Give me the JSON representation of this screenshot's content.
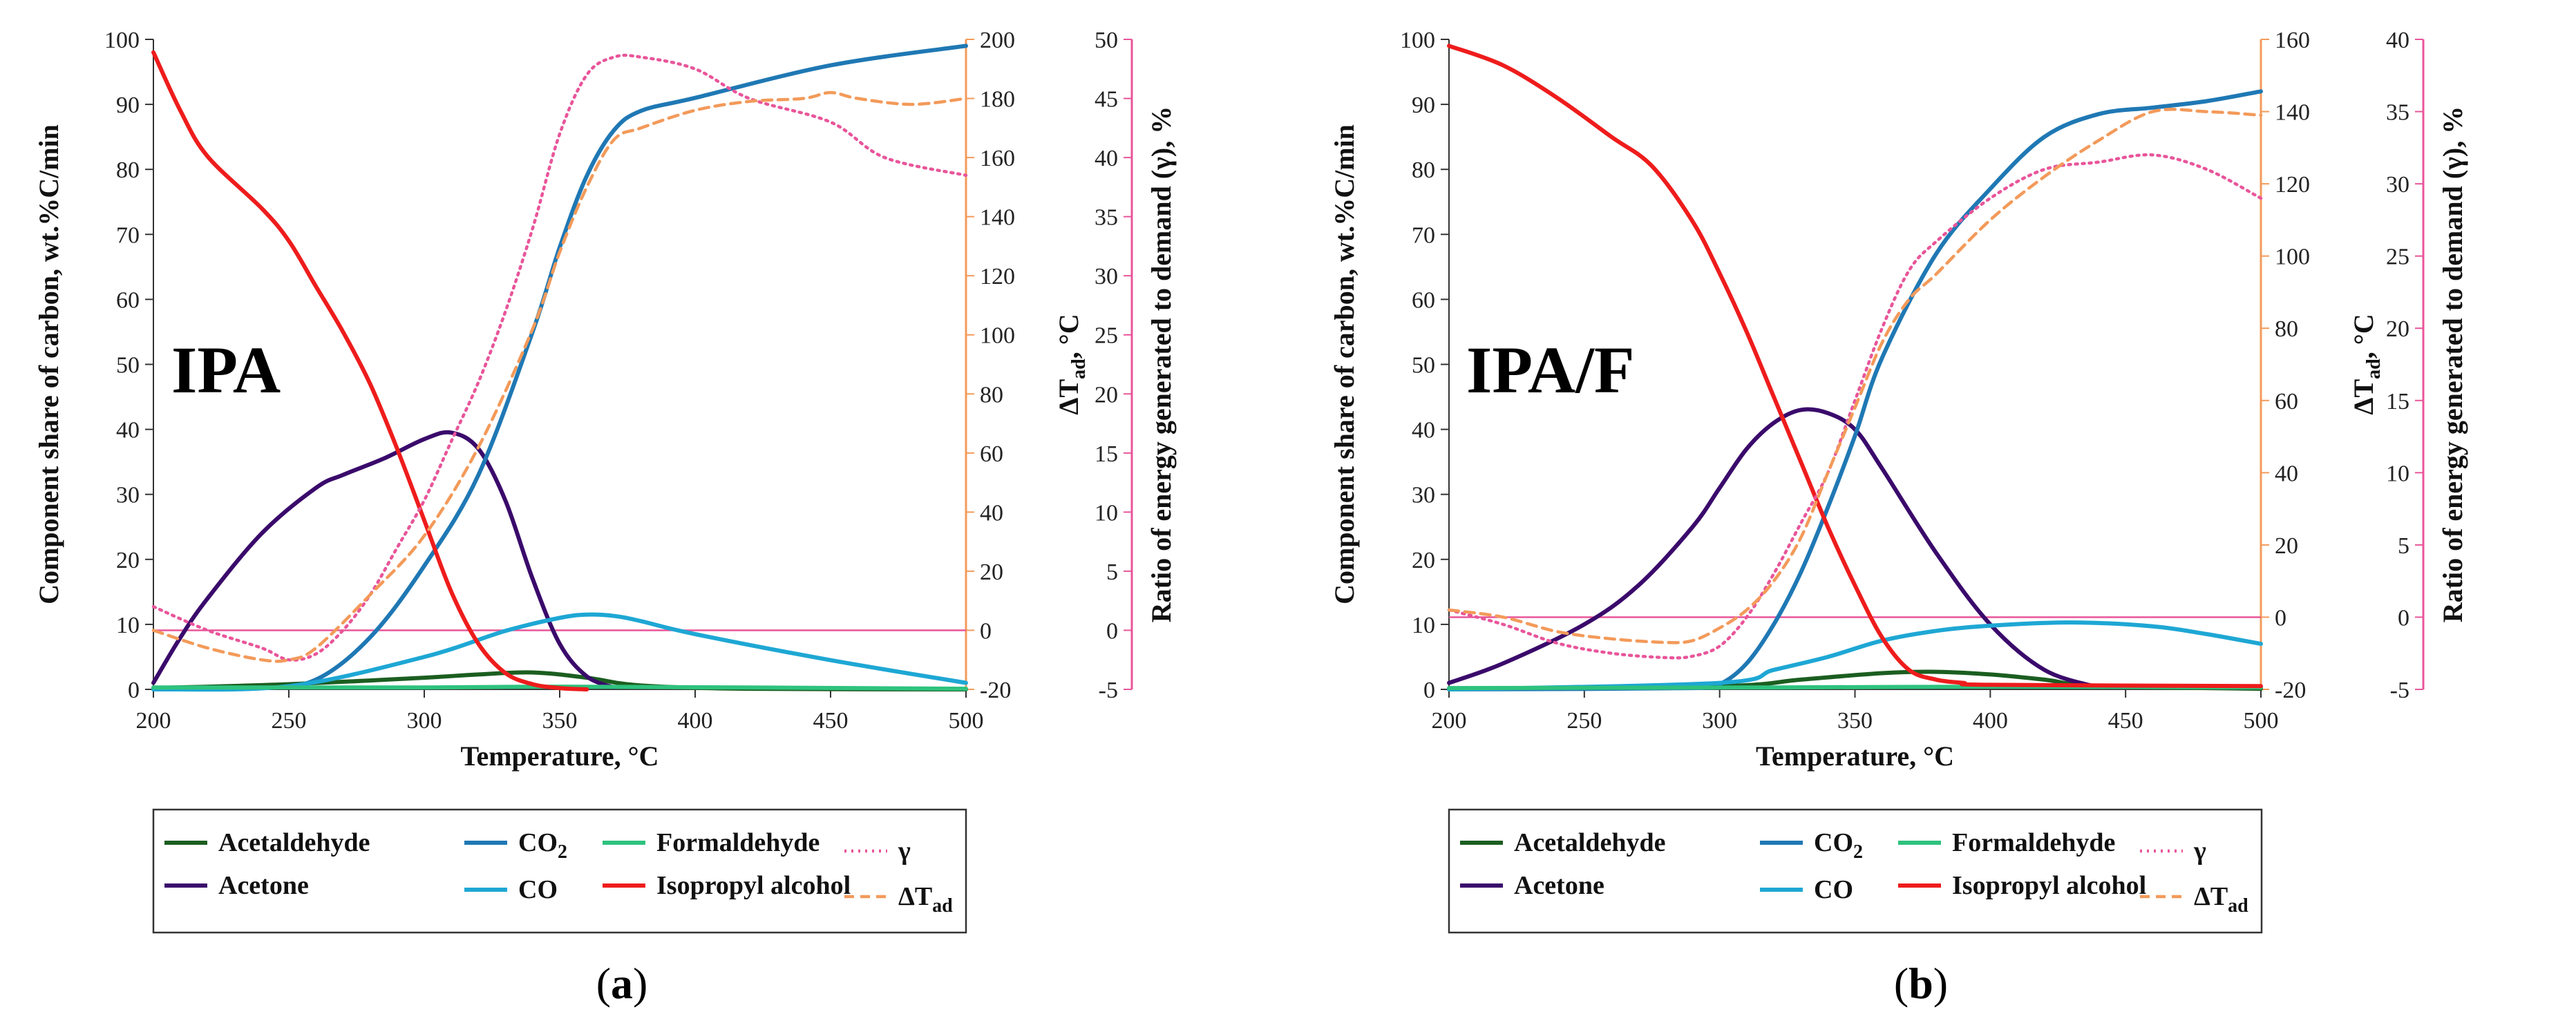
{
  "chart_data": [
    {
      "type": "line",
      "panel_label": "(a)",
      "label_prefix": "(",
      "label_letter": "a",
      "label_suffix": ")",
      "annotation": "IPA",
      "xlabel": "Temperature, °C",
      "ylabel": "Component share of carbon, wt.%C/min",
      "ylabel2_base": "ΔT",
      "ylabel2_sub": "ad",
      "ylabel2_tail": ", °C",
      "ylabel3": "Ratio of energy generated to demand (γ), %",
      "xlim": [
        200,
        500
      ],
      "ylim": [
        0,
        100
      ],
      "y2lim": [
        -20,
        200
      ],
      "y3lim": [
        -5,
        50
      ],
      "xticks": [
        200,
        250,
        300,
        350,
        400,
        450,
        500
      ],
      "yticks": [
        0,
        10,
        20,
        30,
        40,
        50,
        60,
        70,
        80,
        90,
        100
      ],
      "y2ticks": [
        -20,
        0,
        20,
        40,
        60,
        80,
        100,
        120,
        140,
        160,
        180,
        200
      ],
      "y3ticks": [
        -5,
        0,
        5,
        10,
        15,
        20,
        25,
        30,
        35,
        40,
        45,
        50
      ],
      "series": [
        {
          "name": "Acetaldehyde",
          "axis": "left",
          "color": "#1b5e20",
          "dash": "solid",
          "x": [
            200,
            250,
            300,
            320,
            340,
            360,
            380,
            420,
            500
          ],
          "y": [
            0.2,
            0.8,
            1.8,
            2.3,
            2.6,
            1.8,
            0.6,
            0.1,
            0
          ]
        },
        {
          "name": "Acetone",
          "axis": "left",
          "color": "#3a0a6b",
          "dash": "solid",
          "x": [
            200,
            210,
            220,
            240,
            260,
            270,
            285,
            300,
            310,
            320,
            330,
            340,
            350,
            360,
            370
          ],
          "y": [
            1,
            8,
            14,
            24,
            31,
            33,
            35.5,
            38.5,
            39.5,
            37,
            29,
            17,
            7,
            2,
            0.3
          ]
        },
        {
          "name": "CO2",
          "axis": "left",
          "color": "#1f78b4",
          "dash": "solid",
          "x": [
            200,
            240,
            260,
            280,
            300,
            320,
            340,
            350,
            360,
            370,
            380,
            400,
            450,
            500
          ],
          "y": [
            0,
            0.2,
            1.5,
            8,
            19,
            33,
            55,
            68,
            79,
            86,
            89,
            91,
            96,
            99
          ]
        },
        {
          "name": "CO",
          "axis": "left",
          "color": "#1ea7d4",
          "dash": "solid",
          "x": [
            200,
            250,
            300,
            330,
            350,
            360,
            370,
            380,
            400,
            450,
            500
          ],
          "y": [
            0,
            0.5,
            5,
            9,
            11,
            11.5,
            11.3,
            10.5,
            8.5,
            4.5,
            1
          ]
        },
        {
          "name": "Formaldehyde",
          "axis": "left",
          "color": "#2ec27e",
          "dash": "solid",
          "x": [
            200,
            300,
            360,
            500
          ],
          "y": [
            0.3,
            0.3,
            0.4,
            0.1
          ]
        },
        {
          "name": "Isopropyl alcohol",
          "axis": "left",
          "color": "#ee1c1c",
          "dash": "solid",
          "x": [
            200,
            210,
            220,
            240,
            250,
            260,
            270,
            280,
            290,
            300,
            310,
            320,
            330,
            340,
            350,
            360
          ],
          "y": [
            98,
            89,
            82,
            74,
            69,
            62,
            55,
            47,
            37,
            26,
            15,
            7,
            2.5,
            0.8,
            0.2,
            0
          ]
        },
        {
          "name": "γ",
          "axis": "right3",
          "color": "#e8559a",
          "dash": "dotted",
          "x": [
            200,
            220,
            240,
            250,
            260,
            270,
            280,
            290,
            300,
            310,
            320,
            330,
            340,
            350,
            360,
            370,
            380,
            400,
            420,
            450,
            470,
            500
          ],
          "y": [
            2,
            0,
            -1.5,
            -2.5,
            -2,
            0,
            3,
            7,
            11,
            16,
            21,
            27,
            34,
            42,
            47,
            48.5,
            48.5,
            47.5,
            45,
            43,
            40,
            38.5
          ]
        },
        {
          "name": "ΔTad",
          "axis": "right2",
          "color": "#f39a5a",
          "dash": "dashed",
          "x": [
            200,
            220,
            240,
            250,
            260,
            280,
            300,
            320,
            340,
            350,
            360,
            370,
            380,
            400,
            420,
            440,
            450,
            460,
            480,
            500
          ],
          "y": [
            0,
            -6,
            -10,
            -10,
            -6,
            12,
            32,
            62,
            102,
            128,
            150,
            166,
            170,
            176,
            179,
            180,
            182,
            180,
            178,
            180
          ]
        }
      ],
      "hline": {
        "axis": "right3",
        "y": 0,
        "color": "#e8559a"
      }
    },
    {
      "type": "line",
      "panel_label": "(b)",
      "label_prefix": "(",
      "label_letter": "b",
      "label_suffix": ")",
      "annotation": "IPA/F",
      "xlabel": "Temperature, °C",
      "ylabel": "Component share of carbon, wt.%C/min",
      "ylabel2_base": "ΔT",
      "ylabel2_sub": "ad",
      "ylabel2_tail": ", °C",
      "ylabel3": "Ratio of energy generated to demand (γ), %",
      "xlim": [
        200,
        500
      ],
      "ylim": [
        0,
        100
      ],
      "y2lim": [
        -20,
        160
      ],
      "y3lim": [
        -5,
        40
      ],
      "xticks": [
        200,
        250,
        300,
        350,
        400,
        450,
        500
      ],
      "yticks": [
        0,
        10,
        20,
        30,
        40,
        50,
        60,
        70,
        80,
        90,
        100
      ],
      "y2ticks": [
        -20,
        0,
        20,
        40,
        60,
        80,
        100,
        120,
        140,
        160
      ],
      "y3ticks": [
        -5,
        0,
        5,
        10,
        15,
        20,
        25,
        30,
        35,
        40
      ],
      "series": [
        {
          "name": "Acetaldehyde",
          "axis": "left",
          "color": "#1b5e20",
          "dash": "solid",
          "x": [
            200,
            300,
            330,
            360,
            380,
            400,
            420,
            440,
            500
          ],
          "y": [
            0.1,
            0.5,
            1.5,
            2.5,
            2.7,
            2.3,
            1.5,
            0.5,
            0.1
          ]
        },
        {
          "name": "Acetone",
          "axis": "left",
          "color": "#3a0a6b",
          "dash": "solid",
          "x": [
            200,
            220,
            250,
            270,
            290,
            300,
            310,
            320,
            330,
            340,
            350,
            360,
            380,
            400,
            420,
            440
          ],
          "y": [
            1,
            4,
            10,
            16,
            25,
            31,
            37,
            41,
            43,
            42.5,
            40,
            34,
            21,
            10,
            3,
            0.3
          ]
        },
        {
          "name": "CO2",
          "axis": "left",
          "color": "#1f78b4",
          "dash": "solid",
          "x": [
            200,
            290,
            300,
            310,
            320,
            330,
            340,
            350,
            360,
            380,
            400,
            420,
            440,
            460,
            480,
            500
          ],
          "y": [
            0,
            0.2,
            0.8,
            4,
            10,
            18,
            28,
            39,
            51,
            67,
            77,
            85,
            88.5,
            89.5,
            90.5,
            92
          ]
        },
        {
          "name": "CO",
          "axis": "left",
          "color": "#1ea7d4",
          "dash": "solid",
          "x": [
            200,
            300,
            320,
            340,
            360,
            380,
            400,
            430,
            460,
            480,
            500
          ],
          "y": [
            0,
            1,
            3,
            5,
            7.5,
            9,
            9.8,
            10.3,
            9.7,
            8.5,
            7
          ]
        },
        {
          "name": "Formaldehyde",
          "axis": "left",
          "color": "#2ec27e",
          "dash": "solid",
          "x": [
            200,
            320,
            400,
            500
          ],
          "y": [
            0.2,
            0.3,
            0.4,
            0.3
          ]
        },
        {
          "name": "Isopropyl alcohol",
          "axis": "left",
          "color": "#ee1c1c",
          "dash": "solid",
          "x": [
            200,
            220,
            240,
            260,
            275,
            290,
            300,
            310,
            320,
            330,
            340,
            350,
            360,
            370,
            380,
            390,
            400,
            500
          ],
          "y": [
            99,
            96,
            91,
            85,
            80.5,
            72,
            64,
            55,
            45,
            35,
            25,
            16,
            8,
            3,
            1.5,
            1,
            0.7,
            0.5
          ]
        },
        {
          "name": "γ",
          "axis": "right3",
          "color": "#e8559a",
          "dash": "dotted",
          "x": [
            200,
            220,
            240,
            260,
            280,
            290,
            300,
            310,
            320,
            330,
            340,
            350,
            360,
            370,
            380,
            400,
            420,
            440,
            460,
            480,
            500
          ],
          "y": [
            0.5,
            -0.5,
            -1.8,
            -2.5,
            -2.8,
            -2.7,
            -2,
            0,
            3,
            6.5,
            10,
            15,
            20,
            24,
            26,
            29,
            31,
            31.5,
            32,
            31,
            29
          ]
        },
        {
          "name": "ΔTad",
          "axis": "right2",
          "color": "#f39a5a",
          "dash": "dashed",
          "x": [
            200,
            220,
            240,
            260,
            280,
            290,
            300,
            310,
            320,
            330,
            340,
            350,
            360,
            370,
            380,
            400,
            420,
            440,
            460,
            480,
            500
          ],
          "y": [
            2,
            0,
            -4,
            -6,
            -7,
            -6.5,
            -3,
            2,
            10,
            22,
            40,
            58,
            76,
            88,
            95,
            110,
            122,
            132,
            140,
            140,
            139
          ]
        }
      ],
      "hline": {
        "axis": "right3",
        "y": 0,
        "color": "#e8559a"
      }
    }
  ],
  "legend": {
    "col1": [
      "Acetaldehyde",
      "Acetone"
    ],
    "col2_co2_base": "CO",
    "col2_co2_sub": "2",
    "col2_co": "CO",
    "col3": [
      "Formaldehyde",
      "Isopropyl alcohol"
    ],
    "gamma": "γ",
    "dt_base": "ΔT",
    "dt_sub": "ad"
  }
}
